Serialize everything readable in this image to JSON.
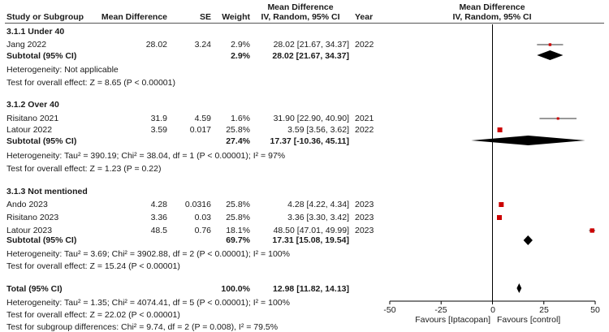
{
  "header": {
    "study": "Study or Subgroup",
    "md": "Mean Difference",
    "se": "SE",
    "weight": "Weight",
    "ci_l1": "Mean Difference",
    "ci_l2": "IV, Random, 95% CI",
    "year": "Year",
    "plot_l1": "Mean Difference",
    "plot_l2": "IV, Random, 95% CI"
  },
  "groups": [
    {
      "title": "3.1.1 Under 40",
      "studies": [
        {
          "name": "Jang 2022",
          "md": "28.02",
          "se": "3.24",
          "weight": "2.9%",
          "ci": "28.02 [21.67, 34.37]",
          "year": "2022"
        }
      ],
      "subtotal": {
        "label": "Subtotal (95% CI)",
        "weight": "2.9%",
        "ci": "28.02 [21.67, 34.37]"
      },
      "heterogeneity": "Heterogeneity: Not applicable",
      "overall": "Test for overall effect: Z = 8.65 (P < 0.00001)"
    },
    {
      "title": "3.1.2 Over 40",
      "studies": [
        {
          "name": "Risitano 2021",
          "md": "31.9",
          "se": "4.59",
          "weight": "1.6%",
          "ci": "31.90 [22.90, 40.90]",
          "year": "2021"
        },
        {
          "name": "Latour 2022",
          "md": "3.59",
          "se": "0.017",
          "weight": "25.8%",
          "ci": "3.59 [3.56, 3.62]",
          "year": "2022"
        }
      ],
      "subtotal": {
        "label": "Subtotal (95% CI)",
        "weight": "27.4%",
        "ci": "17.37 [-10.36, 45.11]"
      },
      "heterogeneity": "Heterogeneity: Tau² = 390.19; Chi² = 38.04, df = 1 (P < 0.00001); I² = 97%",
      "overall": "Test for overall effect: Z = 1.23 (P = 0.22)"
    },
    {
      "title": "3.1.3 Not mentioned",
      "studies": [
        {
          "name": "Ando 2023",
          "md": "4.28",
          "se": "0.0316",
          "weight": "25.8%",
          "ci": "4.28 [4.22, 4.34]",
          "year": "2023"
        },
        {
          "name": "Risitano 2023",
          "md": "3.36",
          "se": "0.03",
          "weight": "25.8%",
          "ci": "3.36 [3.30, 3.42]",
          "year": "2023"
        },
        {
          "name": "Latour 2023",
          "md": "48.5",
          "se": "0.76",
          "weight": "18.1%",
          "ci": "48.50 [47.01, 49.99]",
          "year": "2023"
        }
      ],
      "subtotal": {
        "label": "Subtotal (95% CI)",
        "weight": "69.7%",
        "ci": "17.31 [15.08, 19.54]"
      },
      "heterogeneity": "Heterogeneity: Tau² = 3.69; Chi² = 3902.88, df = 2 (P < 0.00001); I² = 100%",
      "overall": "Test for overall effect: Z = 15.24 (P < 0.00001)"
    }
  ],
  "total": {
    "label": "Total (95% CI)",
    "weight": "100.0%",
    "ci": "12.98 [11.82, 14.13]",
    "heterogeneity": "Heterogeneity: Tau² = 1.35; Chi² = 4074.41, df = 5 (P < 0.00001); I² = 100%",
    "overall": "Test for overall effect: Z = 22.02 (P < 0.00001)",
    "subgroup": "Test for subgroup differences: Chi² = 9.74, df = 2 (P = 0.008), I² = 79.5%"
  },
  "axis": {
    "ticks": [
      "-50",
      "-25",
      "0",
      "25",
      "50"
    ],
    "favours_left": "Favours [Iptacopan]",
    "favours_right": "Favours [control]"
  },
  "colors": {
    "study_marker": "#cc0000",
    "diamond": "#000000",
    "line": "#333333"
  },
  "chart_data": {
    "type": "forest",
    "xlim": [
      -50,
      50
    ],
    "studies": [
      {
        "name": "Jang 2022",
        "group": "3.1.1 Under 40",
        "mean": 28.02,
        "lo": 21.67,
        "hi": 34.37,
        "weight": 2.9
      },
      {
        "name": "Risitano 2021",
        "group": "3.1.2 Over 40",
        "mean": 31.9,
        "lo": 22.9,
        "hi": 40.9,
        "weight": 1.6
      },
      {
        "name": "Latour 2022",
        "group": "3.1.2 Over 40",
        "mean": 3.59,
        "lo": 3.56,
        "hi": 3.62,
        "weight": 25.8
      },
      {
        "name": "Ando 2023",
        "group": "3.1.3 Not mentioned",
        "mean": 4.28,
        "lo": 4.22,
        "hi": 4.34,
        "weight": 25.8
      },
      {
        "name": "Risitano 2023",
        "group": "3.1.3 Not mentioned",
        "mean": 3.36,
        "lo": 3.3,
        "hi": 3.42,
        "weight": 25.8
      },
      {
        "name": "Latour 2023",
        "group": "3.1.3 Not mentioned",
        "mean": 48.5,
        "lo": 47.01,
        "hi": 49.99,
        "weight": 18.1
      }
    ],
    "subtotals": [
      {
        "group": "3.1.1 Under 40",
        "mean": 28.02,
        "lo": 21.67,
        "hi": 34.37
      },
      {
        "group": "3.1.2 Over 40",
        "mean": 17.37,
        "lo": -10.36,
        "hi": 45.11
      },
      {
        "group": "3.1.3 Not mentioned",
        "mean": 17.31,
        "lo": 15.08,
        "hi": 19.54
      }
    ],
    "total": {
      "mean": 12.98,
      "lo": 11.82,
      "hi": 14.13
    }
  }
}
